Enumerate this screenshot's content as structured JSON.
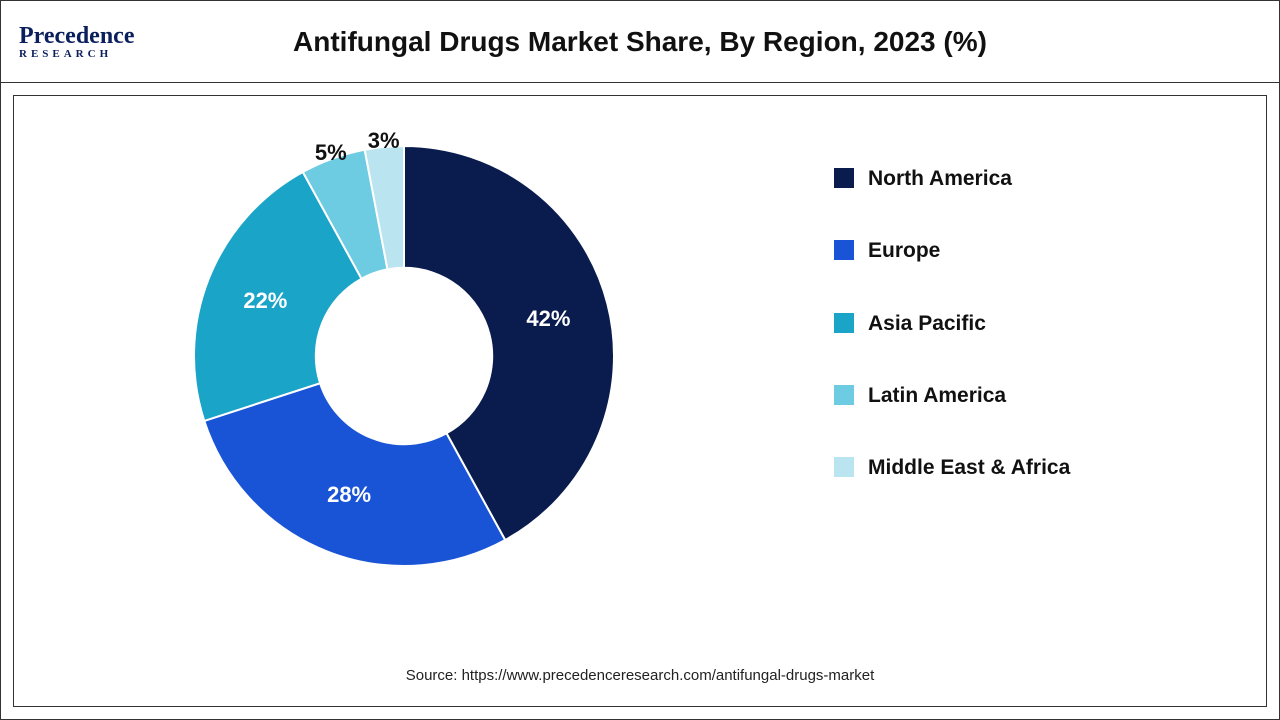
{
  "brand": {
    "name_line1": "Precedence",
    "name_line2": "RESEARCH",
    "text_color": "#0a1f5c"
  },
  "title": "Antifungal Drugs Market Share, By Region, 2023 (%)",
  "source_line": "Source: https://www.precedenceresearch.com/antifungal-drugs-market",
  "chart": {
    "type": "donut",
    "inner_radius_pct": 42,
    "outer_radius_pct": 100,
    "start_angle_deg": 0,
    "background_color": "#ffffff",
    "border_color": "#333333",
    "label_fontsize": 22,
    "label_fontweight": "bold",
    "label_color": "#111111",
    "legend_fontsize": 21,
    "legend_fontweight": "bold",
    "slices": [
      {
        "label": "North America",
        "value": 42,
        "pct_text": "42%",
        "color": "#0a1b4d"
      },
      {
        "label": "Europe",
        "value": 28,
        "pct_text": "28%",
        "color": "#1a54d6"
      },
      {
        "label": "Asia Pacific",
        "value": 22,
        "pct_text": "22%",
        "color": "#1aa4c8"
      },
      {
        "label": "Latin America",
        "value": 5,
        "pct_text": "5%",
        "color": "#6dcbe2"
      },
      {
        "label": "Middle East & Africa",
        "value": 3,
        "pct_text": "3%",
        "color": "#b9e4f0"
      }
    ]
  }
}
